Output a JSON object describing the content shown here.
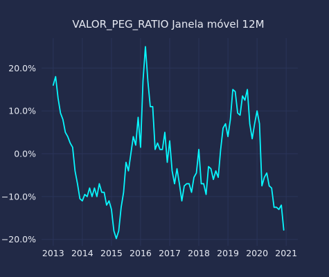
{
  "chart_data": {
    "type": "line",
    "title": "VALOR_PEG_RATIO Janela móvel 12M",
    "xlabel": "",
    "ylabel": "",
    "x_start": "2013-01",
    "x_end": "2020-12",
    "xlim": [
      2012.6,
      2021.4
    ],
    "ylim": [
      -0.215,
      0.27
    ],
    "x_ticks": [
      2013,
      2014,
      2015,
      2016,
      2017,
      2018,
      2019,
      2020,
      2021
    ],
    "x_tick_labels": [
      "2013",
      "2014",
      "2015",
      "2016",
      "2017",
      "2018",
      "2019",
      "2020",
      "2021"
    ],
    "y_ticks": [
      -0.2,
      -0.1,
      0.0,
      0.1,
      0.2
    ],
    "y_tick_labels": [
      "−20.0%",
      "−10.0%",
      "0.0%",
      "10.0%",
      "20.0%"
    ],
    "grid": true,
    "colors": {
      "background": "#212946",
      "grid": "#2a3459",
      "line": "#08F7FE",
      "text": "#e6e9f2"
    },
    "series": [
      {
        "values": [
          0.16,
          0.18,
          0.13,
          0.095,
          0.08,
          0.05,
          0.04,
          0.025,
          0.015,
          -0.04,
          -0.07,
          -0.105,
          -0.11,
          -0.095,
          -0.1,
          -0.08,
          -0.1,
          -0.08,
          -0.1,
          -0.07,
          -0.09,
          -0.09,
          -0.12,
          -0.11,
          -0.13,
          -0.18,
          -0.198,
          -0.18,
          -0.125,
          -0.09,
          -0.02,
          -0.04,
          0.0,
          0.04,
          0.02,
          0.085,
          0.015,
          0.17,
          0.25,
          0.17,
          0.11,
          0.11,
          0.01,
          0.025,
          0.01,
          0.01,
          0.05,
          -0.02,
          0.03,
          -0.04,
          -0.07,
          -0.035,
          -0.07,
          -0.11,
          -0.075,
          -0.07,
          -0.07,
          -0.09,
          -0.055,
          -0.045,
          0.01,
          -0.07,
          -0.07,
          -0.095,
          -0.03,
          -0.035,
          -0.06,
          -0.04,
          -0.055,
          0.01,
          0.06,
          0.07,
          0.04,
          0.08,
          0.15,
          0.145,
          0.095,
          0.09,
          0.135,
          0.125,
          0.15,
          0.07,
          0.035,
          0.07,
          0.1,
          0.07,
          -0.075,
          -0.055,
          -0.045,
          -0.075,
          -0.08,
          -0.125,
          -0.125,
          -0.13,
          -0.12,
          -0.178
        ]
      }
    ]
  }
}
